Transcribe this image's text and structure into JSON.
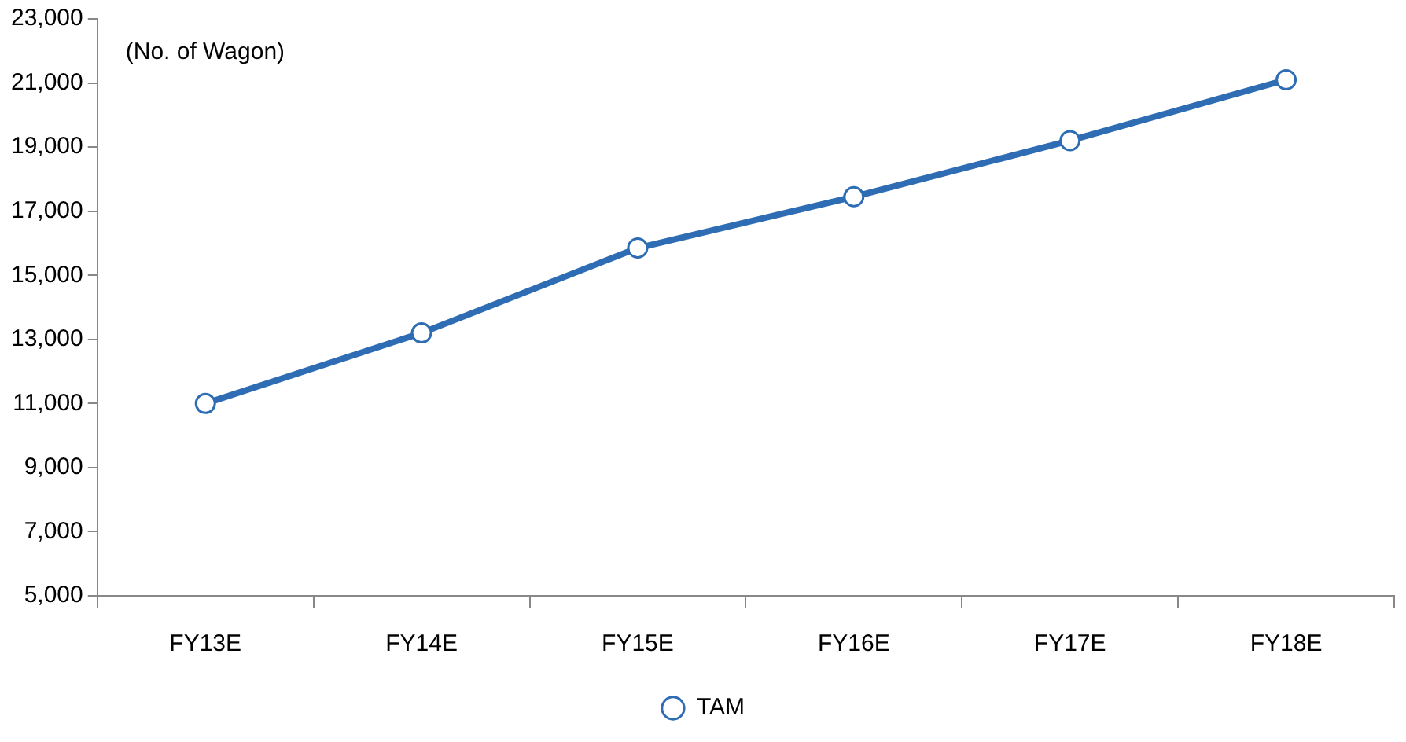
{
  "chart_data": {
    "type": "line",
    "categories": [
      "FY13E",
      "FY14E",
      "FY15E",
      "FY16E",
      "FY17E",
      "FY18E"
    ],
    "series": [
      {
        "name": "TAM",
        "color": "#2e6db4",
        "values": [
          11000,
          13200,
          15850,
          17450,
          19200,
          21100
        ]
      }
    ],
    "ylim": [
      5000,
      23000
    ],
    "yticks": [
      {
        "value": 5000,
        "label": "5,000"
      },
      {
        "value": 7000,
        "label": "7,000"
      },
      {
        "value": 9000,
        "label": "9,000"
      },
      {
        "value": 11000,
        "label": "11,000"
      },
      {
        "value": 13000,
        "label": "13,000"
      },
      {
        "value": 15000,
        "label": "15,000"
      },
      {
        "value": 17000,
        "label": "17,000"
      },
      {
        "value": 19000,
        "label": "19,000"
      },
      {
        "value": 21000,
        "label": "21,000"
      },
      {
        "value": 23000,
        "label": "23,000"
      }
    ],
    "annotations": [
      "(No. of Wagon)"
    ],
    "legend": "bottom",
    "marker": "circle"
  }
}
